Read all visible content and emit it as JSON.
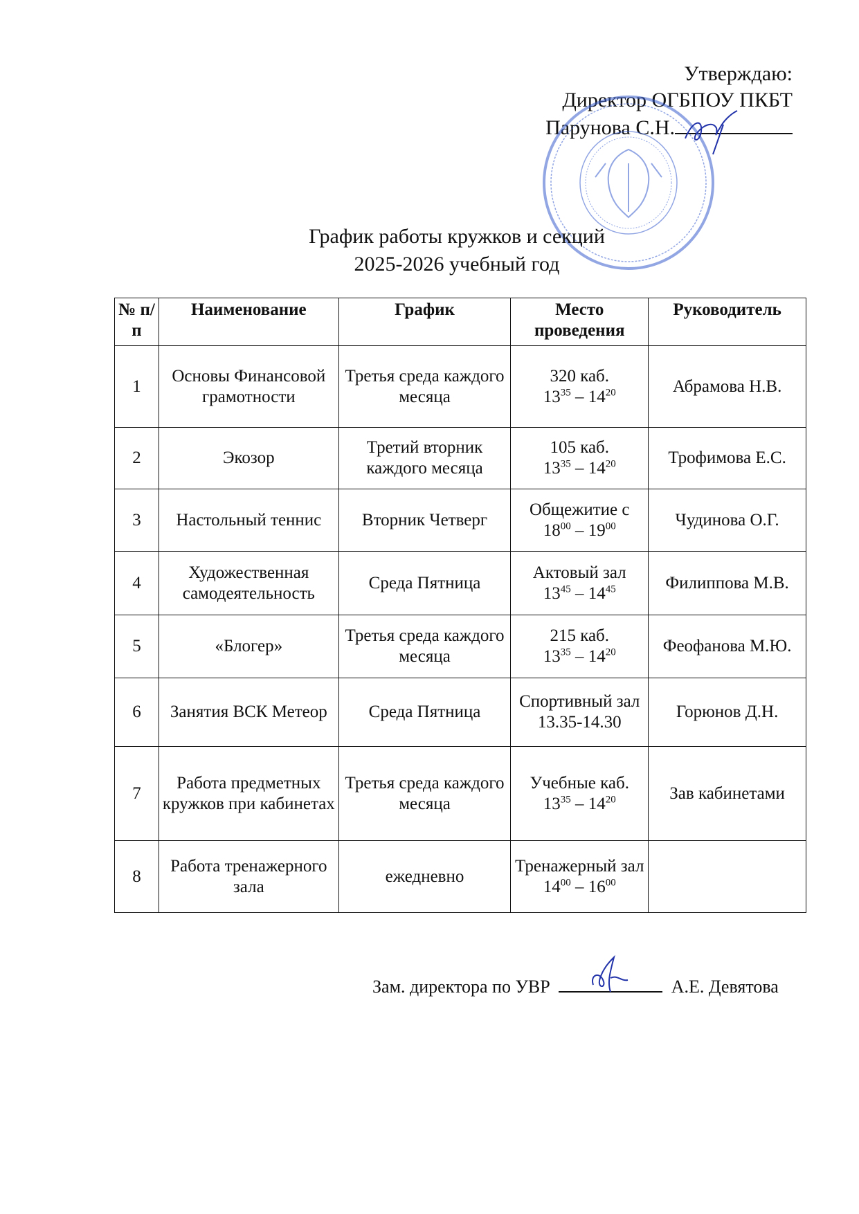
{
  "approval": {
    "line1": "Утверждаю:",
    "line2": "Директор ОГБПОУ ПКБТ",
    "line3": "Парунова С.Н."
  },
  "title": {
    "line1": "График работы кружков и секций",
    "line2": "2025-2026 учебный год"
  },
  "table": {
    "headers": [
      "№ п/п",
      "Наименование",
      "График",
      "Место проведения",
      "Руководитель"
    ],
    "rows": [
      {
        "num": "1",
        "name": "Основы Финансовой грамотности",
        "schedule": "Третья среда каждого месяца",
        "place": "320 каб.",
        "time": [
          "13",
          "35",
          "14",
          "20"
        ],
        "leader": "Абрамова Н.В."
      },
      {
        "num": "2",
        "name": "Экозор",
        "schedule": "Третий вторник каждого месяца",
        "place": "105 каб.",
        "time": [
          "13",
          "35",
          "14",
          "20"
        ],
        "leader": "Трофимова Е.С."
      },
      {
        "num": "3",
        "name": "Настольный теннис",
        "schedule": "Вторник Четверг",
        "place": "Общежитие с",
        "time": [
          "18",
          "00",
          "19",
          "00"
        ],
        "leader": "Чудинова О.Г."
      },
      {
        "num": "4",
        "name": "Художественная самодеятельность",
        "schedule": "Среда Пятница",
        "place": "Актовый зал",
        "time": [
          "13",
          "45",
          "14",
          "45"
        ],
        "leader": "Филиппова М.В."
      },
      {
        "num": "5",
        "name": "«Блогер»",
        "schedule": "Третья среда каждого месяца",
        "place": "215 каб.",
        "time": [
          "13",
          "35",
          "14",
          "20"
        ],
        "leader": "Феофанова М.Ю."
      },
      {
        "num": "6",
        "name": "Занятия ВСК Метеор",
        "schedule": "Среда Пятница",
        "place": "Спортивный зал",
        "time_text": "13.35-14.30",
        "leader": "Горюнов Д.Н."
      },
      {
        "num": "7",
        "name": "Работа предметных кружков при кабинетах",
        "schedule": "Третья среда каждого месяца",
        "place": "Учебные каб.",
        "time": [
          "13",
          "35",
          "14",
          "20"
        ],
        "leader": "Зав кабинетами"
      },
      {
        "num": "8",
        "name": "Работа тренажерного зала",
        "schedule": "ежедневно",
        "place": "Тренажерный зал",
        "time": [
          "14",
          "00",
          "16",
          "00"
        ],
        "leader": ""
      }
    ]
  },
  "footer": {
    "position": "Зам. директора по УВР",
    "name": "А.Е. Девятова"
  },
  "colors": {
    "stamp": "#3a5fcf",
    "signature": "#2233aa"
  }
}
